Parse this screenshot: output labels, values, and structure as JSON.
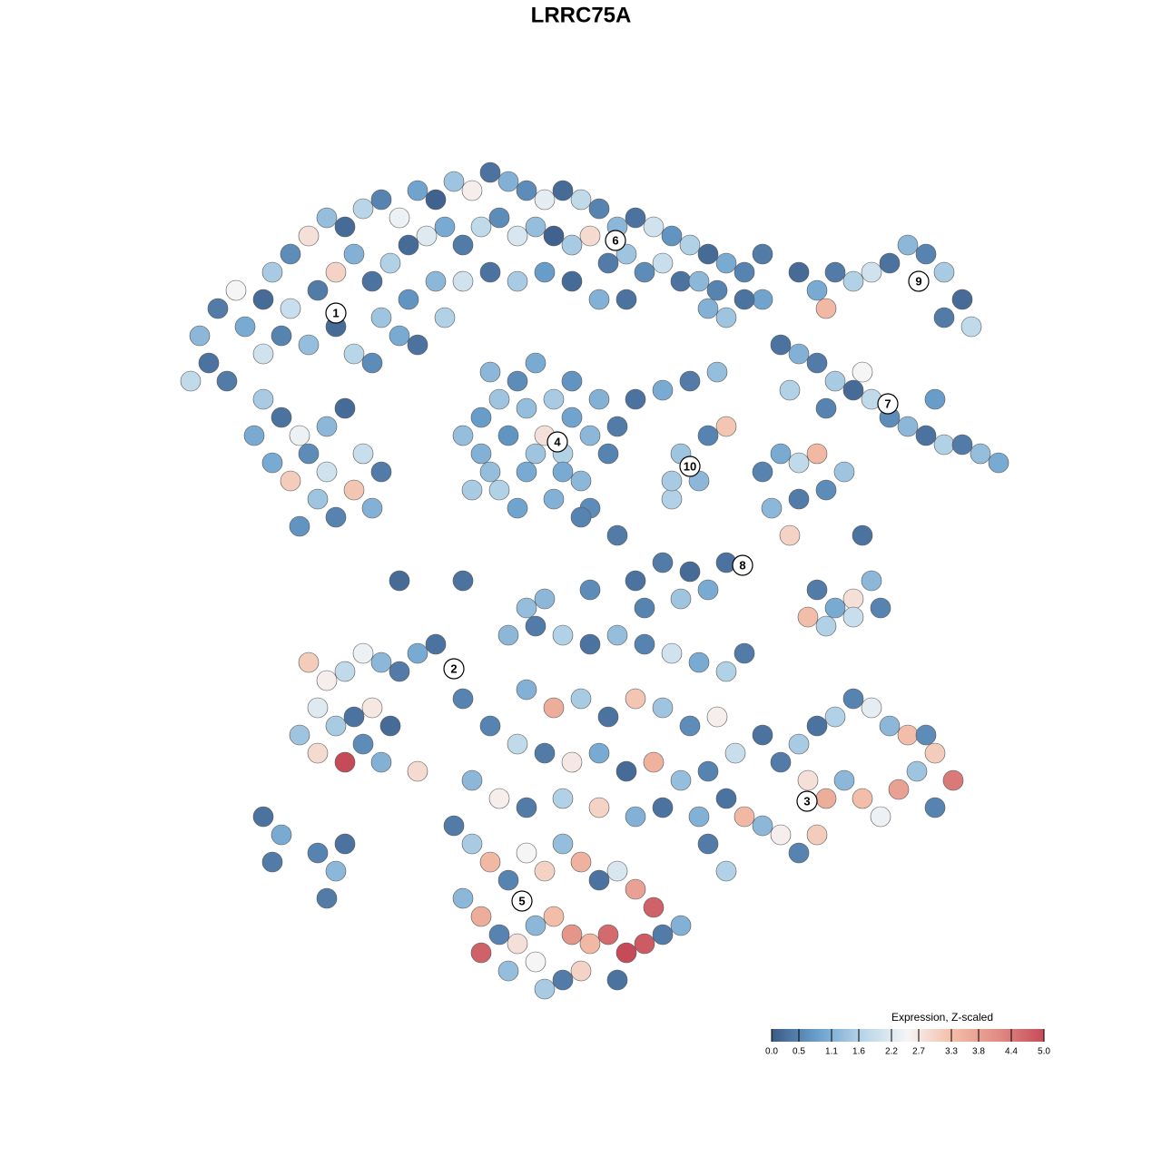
{
  "chart_data": {
    "type": "scatter",
    "title": "LRRC75A",
    "xlim": [
      0,
      96
    ],
    "ylim": [
      0,
      92
    ],
    "x": [
      5,
      4,
      6,
      8,
      9,
      11,
      12,
      14,
      16,
      18,
      20,
      22,
      24,
      26,
      28,
      30,
      32,
      34,
      36,
      38,
      40,
      42,
      44,
      46,
      48,
      50,
      52,
      54,
      56,
      58,
      60,
      62,
      64,
      66,
      14,
      17,
      19,
      21,
      23,
      25,
      27,
      29,
      31,
      33,
      35,
      37,
      39,
      41,
      43,
      45,
      47,
      49,
      51,
      53,
      55,
      57,
      59,
      61,
      24,
      27,
      30,
      33,
      36,
      39,
      42,
      45,
      48,
      51,
      11,
      13,
      16,
      19,
      21,
      23,
      26,
      28,
      31,
      3,
      7,
      11,
      13,
      15,
      12,
      14,
      16,
      18,
      20,
      22,
      17,
      19,
      21,
      23,
      15,
      18,
      24,
      10,
      33,
      35,
      37,
      39,
      41,
      43,
      45,
      47,
      49,
      48,
      44,
      40,
      36,
      38,
      42,
      46,
      34,
      39,
      43,
      47,
      50,
      36,
      35,
      41,
      45,
      37,
      44,
      40,
      52,
      55,
      58,
      61,
      57,
      59,
      56,
      60,
      62,
      62,
      64,
      60,
      66,
      70,
      72,
      74,
      76,
      78,
      80,
      82,
      84,
      86,
      88,
      89,
      73,
      86,
      68,
      70,
      72,
      74,
      76,
      78,
      80,
      82,
      84,
      86,
      88,
      90,
      92,
      69,
      73,
      77,
      85,
      66,
      68,
      70,
      72,
      67,
      69,
      70,
      73,
      75,
      77,
      78,
      76,
      74,
      72,
      71,
      73,
      76,
      79,
      62,
      58,
      55,
      52,
      60,
      53,
      57,
      16,
      18,
      20,
      22,
      24,
      26,
      28,
      30,
      17,
      19,
      21,
      23,
      15,
      17,
      20,
      22,
      24,
      25,
      33,
      28,
      38,
      41,
      44,
      47,
      50,
      53,
      56,
      59,
      62,
      64,
      40,
      43,
      46,
      49,
      52,
      55,
      58,
      61,
      39,
      42,
      45,
      48,
      51,
      54,
      57,
      60,
      63,
      66,
      36,
      34,
      37,
      40,
      44,
      48,
      52,
      55,
      68,
      70,
      72,
      74,
      76,
      78,
      80,
      82,
      84,
      71,
      73,
      75,
      77,
      79,
      81,
      83,
      85,
      87,
      62,
      64,
      66,
      68,
      70,
      72,
      62,
      60,
      59,
      85,
      32,
      34,
      36,
      38,
      40,
      42,
      44,
      46,
      48,
      50,
      52,
      33,
      35,
      37,
      39,
      41,
      43,
      45,
      47,
      49,
      51,
      53,
      55,
      57,
      35,
      38,
      41,
      44,
      46,
      50,
      42,
      54,
      11,
      13,
      12,
      17,
      19,
      18,
      20,
      26,
      33,
      42,
      50,
      56,
      46,
      40,
      47
    ],
    "y": [
      70,
      73,
      76,
      78,
      74,
      77,
      80,
      82,
      84,
      86,
      85,
      87,
      88,
      86,
      89,
      88,
      90,
      89,
      91,
      90,
      89,
      88,
      89,
      88,
      87,
      85,
      86,
      85,
      84,
      83,
      82,
      81,
      80,
      77,
      76,
      78,
      80,
      82,
      79,
      81,
      83,
      84,
      85,
      83,
      85,
      86,
      84,
      85,
      84,
      83,
      84,
      81,
      82,
      80,
      81,
      79,
      79,
      78,
      75,
      77,
      79,
      79,
      80,
      79,
      80,
      79,
      77,
      77,
      71,
      73,
      72,
      74,
      71,
      70,
      73,
      72,
      75,
      68,
      68,
      66,
      64,
      62,
      59,
      57,
      60,
      63,
      65,
      60,
      55,
      53,
      56,
      54,
      52,
      58,
      58,
      62,
      62,
      64,
      66,
      68,
      70,
      66,
      64,
      62,
      60,
      66,
      60,
      58,
      58,
      62,
      62,
      57,
      56,
      54,
      55,
      54,
      63,
      69,
      60,
      60,
      68,
      56,
      58,
      65,
      66,
      67,
      68,
      69,
      60,
      57,
      55,
      62,
      63,
      75,
      77,
      76,
      82,
      80,
      78,
      80,
      79,
      80,
      81,
      83,
      82,
      80,
      77,
      74,
      76,
      75,
      72,
      71,
      70,
      68,
      67,
      66,
      64,
      63,
      62,
      61,
      61,
      60,
      59,
      67,
      65,
      69,
      66,
      58,
      60,
      59,
      60,
      54,
      51,
      55,
      56,
      58,
      51,
      46,
      44,
      43,
      45,
      42,
      41,
      42,
      43,
      48,
      47,
      48,
      46,
      45,
      43,
      44,
      37,
      35,
      36,
      38,
      37,
      36,
      38,
      39,
      32,
      30,
      31,
      32,
      29,
      27,
      26,
      28,
      26,
      30,
      33,
      25,
      40,
      41,
      40,
      39,
      40,
      39,
      38,
      37,
      36,
      38,
      34,
      32,
      33,
      31,
      33,
      32,
      30,
      31,
      28,
      27,
      26,
      27,
      25,
      26,
      24,
      25,
      27,
      29,
      30,
      24,
      22,
      21,
      22,
      21,
      20,
      21,
      26,
      28,
      30,
      31,
      33,
      32,
      30,
      29,
      29,
      24,
      22,
      24,
      22,
      20,
      23,
      25,
      27,
      24,
      22,
      20,
      19,
      18,
      16,
      18,
      14,
      17,
      20,
      21,
      19,
      17,
      15,
      13,
      16,
      14,
      17,
      15,
      13,
      14,
      12,
      11,
      9,
      7,
      6,
      8,
      9,
      7,
      6,
      7,
      5,
      6,
      7,
      8,
      5,
      3,
      4,
      2,
      3,
      2,
      1,
      10,
      20,
      18,
      15,
      16,
      14,
      11,
      17,
      46,
      46,
      44,
      51,
      57,
      53,
      43,
      45
    ],
    "values": [
      0.3,
      1.2,
      0.4,
      2.5,
      1.0,
      0.2,
      1.5,
      0.6,
      2.8,
      1.3,
      0.2,
      1.7,
      0.5,
      2.4,
      0.9,
      0.1,
      1.4,
      2.6,
      0.3,
      1.1,
      0.6,
      2.3,
      0.2,
      1.8,
      0.5,
      1.2,
      0.3,
      2.0,
      0.7,
      1.6,
      0.2,
      1.0,
      0.5,
      0.9,
      1.9,
      0.4,
      3.0,
      1.1,
      0.3,
      1.6,
      0.2,
      2.2,
      1.0,
      0.4,
      1.8,
      0.6,
      2.1,
      1.3,
      0.1,
      1.5,
      2.9,
      0.4,
      1.4,
      0.6,
      1.9,
      0.3,
      1.2,
      0.5,
      1.4,
      0.7,
      1.2,
      2.0,
      0.3,
      1.5,
      0.8,
      0.2,
      1.1,
      0.3,
      2.0,
      0.5,
      1.3,
      0.2,
      1.7,
      0.6,
      1.0,
      0.3,
      1.6,
      1.8,
      0.4,
      1.5,
      0.3,
      2.4,
      1.0,
      3.1,
      0.6,
      1.2,
      0.2,
      1.9,
      1.4,
      0.5,
      3.2,
      1.1,
      0.7,
      2.0,
      0.4,
      1.0,
      1.3,
      0.8,
      1.4,
      0.6,
      1.0,
      1.5,
      0.9,
      1.2,
      0.5,
      1.1,
      1.6,
      1.0,
      1.3,
      0.7,
      2.8,
      1.2,
      1.5,
      0.9,
      1.1,
      0.6,
      0.4,
      1.2,
      1.1,
      1.4,
      0.7,
      1.6,
      1.0,
      1.3,
      0.3,
      1.0,
      0.4,
      1.3,
      1.4,
      1.2,
      1.6,
      0.5,
      3.2,
      1.4,
      0.3,
      1.1,
      0.4,
      0.2,
      1.0,
      0.4,
      1.6,
      2.0,
      0.3,
      1.2,
      0.5,
      1.5,
      0.2,
      1.8,
      3.4,
      0.4,
      0.3,
      1.1,
      0.4,
      1.5,
      0.2,
      1.8,
      0.6,
      1.2,
      0.3,
      1.6,
      0.4,
      1.3,
      1.0,
      1.6,
      0.5,
      2.5,
      0.8,
      0.5,
      1.0,
      1.8,
      3.4,
      1.2,
      3.0,
      0.4,
      0.6,
      1.4,
      0.3,
      1.2,
      2.8,
      1.0,
      0.4,
      3.3,
      1.6,
      1.9,
      0.5,
      0.3,
      0.2,
      0.4,
      0.3,
      1.0,
      0.5,
      1.4,
      3.1,
      2.6,
      1.8,
      2.4,
      1.2,
      0.4,
      1.0,
      0.3,
      2.2,
      1.5,
      0.3,
      2.7,
      1.4,
      2.9,
      5.0,
      0.6,
      1.1,
      0.2,
      0.5,
      2.9,
      1.2,
      0.4,
      1.6,
      0.3,
      1.3,
      0.5,
      2.0,
      1.0,
      1.6,
      0.4,
      1.1,
      3.6,
      1.5,
      0.3,
      3.2,
      1.4,
      0.6,
      2.6,
      1.8,
      0.4,
      2.7,
      1.0,
      0.2,
      3.5,
      1.3,
      0.5,
      1.9,
      0.3,
      0.5,
      1.2,
      2.6,
      0.4,
      1.6,
      3.0,
      1.1,
      0.3,
      0.4,
      1.5,
      0.3,
      1.6,
      0.5,
      2.3,
      1.2,
      3.3,
      0.6,
      2.8,
      3.6,
      1.2,
      3.3,
      2.4,
      3.8,
      1.4,
      3.1,
      4.4,
      0.3,
      3.4,
      1.2,
      2.6,
      0.5,
      3.1,
      1.6,
      0.4,
      1.1,
      0.5,
      0.4,
      1.5,
      3.4,
      0.5,
      2.5,
      3.0,
      1.3,
      3.5,
      0.3,
      2.1,
      3.8,
      1.2,
      3.6,
      0.5,
      2.8,
      1.2,
      3.3,
      4.0,
      3.4,
      4.6,
      5.0,
      4.8,
      0.4,
      1.1,
      4.7,
      1.3,
      2.5,
      0.4,
      3.0,
      0.3,
      1.5,
      4.7,
      0.3,
      1.0,
      0.4,
      0.5,
      1.2,
      0.4,
      0.3,
      0.2,
      0.3,
      1.2,
      0.4,
      1.5,
      0.5,
      1.3,
      0.6
    ],
    "cluster_labels": [
      {
        "text": "1",
        "x": 19,
        "y": 75.5
      },
      {
        "text": "6",
        "x": 49.8,
        "y": 83.5
      },
      {
        "text": "9",
        "x": 83.2,
        "y": 79
      },
      {
        "text": "7",
        "x": 79.8,
        "y": 65.5
      },
      {
        "text": "4",
        "x": 43.4,
        "y": 61.3
      },
      {
        "text": "10",
        "x": 58,
        "y": 58.6
      },
      {
        "text": "8",
        "x": 63.8,
        "y": 47.7
      },
      {
        "text": "2",
        "x": 32,
        "y": 36.3
      },
      {
        "text": "3",
        "x": 70.9,
        "y": 21.7
      },
      {
        "text": "5",
        "x": 39.5,
        "y": 10.7
      }
    ],
    "colorbar_title": "Expression, Z-scaled",
    "colorlim": [
      0,
      5
    ],
    "colorticks": [
      {
        "value": 0,
        "label": "0.0"
      },
      0.5,
      1.1,
      1.6,
      2.2,
      2.7,
      3.3,
      3.8,
      4.4,
      {
        "value": 5,
        "label": "5.0"
      }
    ],
    "colorscale": [
      "#3b5a85",
      "#6a9fcc",
      "#b7d5e8",
      "#f5f5f5",
      "#f3bca6",
      "#e08c84",
      "#c64b59"
    ]
  }
}
